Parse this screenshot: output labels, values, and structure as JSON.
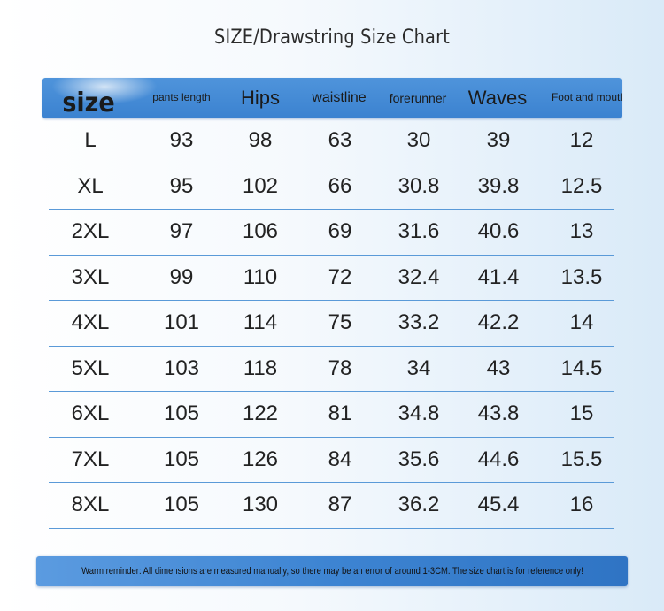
{
  "title": "SIZE/Drawstring Size Chart",
  "headers": [
    "size",
    "pants length",
    "Hips",
    "waistline",
    "forerunner",
    "Waves",
    "Foot and mouth"
  ],
  "rows": [
    [
      "L",
      "93",
      "98",
      "63",
      "30",
      "39",
      "12"
    ],
    [
      "XL",
      "95",
      "102",
      "66",
      "30.8",
      "39.8",
      "12.5"
    ],
    [
      "2XL",
      "97",
      "106",
      "69",
      "31.6",
      "40.6",
      "13"
    ],
    [
      "3XL",
      "99",
      "110",
      "72",
      "32.4",
      "41.4",
      "13.5"
    ],
    [
      "4XL",
      "101",
      "114",
      "75",
      "33.2",
      "42.2",
      "14"
    ],
    [
      "5XL",
      "103",
      "118",
      "78",
      "34",
      "43",
      "14.5"
    ],
    [
      "6XL",
      "105",
      "122",
      "81",
      "34.8",
      "43.8",
      "15"
    ],
    [
      "7XL",
      "105",
      "126",
      "84",
      "35.6",
      "44.6",
      "15.5"
    ],
    [
      "8XL",
      "105",
      "130",
      "87",
      "36.2",
      "45.4",
      "16"
    ]
  ],
  "reminder": "Warm reminder: All dimensions are measured manually, so there may be an error of around 1-3CM. The size chart is for reference only!",
  "colors": {
    "header": "#3b82d0",
    "divider": "#5a9ad8"
  }
}
